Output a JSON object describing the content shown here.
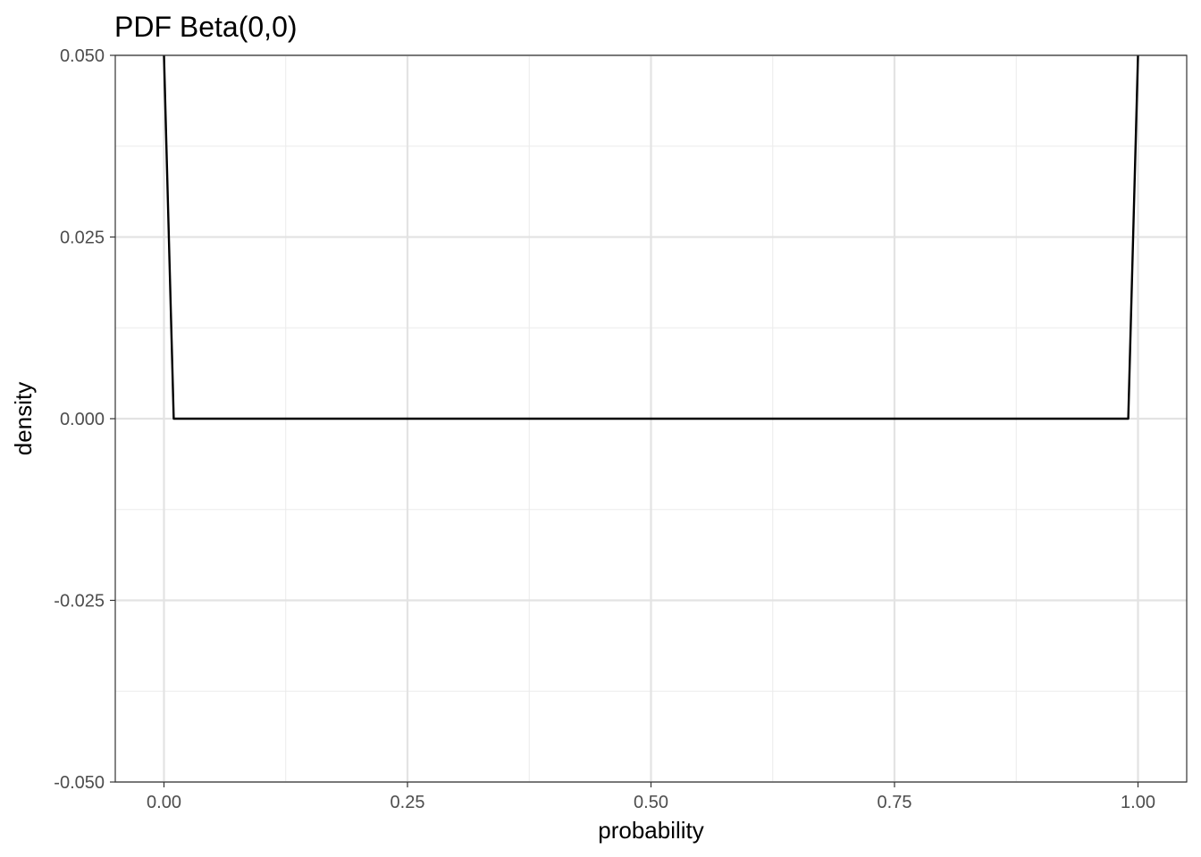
{
  "chart_data": {
    "type": "line",
    "title": "PDF Beta(0,0)",
    "xlabel": "probability",
    "ylabel": "density",
    "xlim": [
      -0.05,
      1.05
    ],
    "ylim": [
      -0.05,
      0.05
    ],
    "x_ticks": [
      0,
      0.25,
      0.5,
      0.75,
      1
    ],
    "x_tick_labels": [
      "0.00",
      "0.25",
      "0.50",
      "0.75",
      "1.00"
    ],
    "y_ticks": [
      -0.05,
      -0.025,
      0,
      0.025,
      0.05
    ],
    "y_tick_labels": [
      "-0.050",
      "-0.025",
      "0.000",
      "0.025",
      "0.050"
    ],
    "x_minor_ticks": [
      0.125,
      0.375,
      0.625,
      0.875
    ],
    "y_minor_ticks": [
      -0.0375,
      -0.0125,
      0.0125,
      0.0375
    ],
    "grid": true,
    "series": [
      {
        "color": "#000000",
        "x": [
          0.0,
          0.01,
          0.99,
          1.0
        ],
        "y": [
          0.05,
          0.0,
          0.0,
          0.05
        ]
      }
    ]
  }
}
